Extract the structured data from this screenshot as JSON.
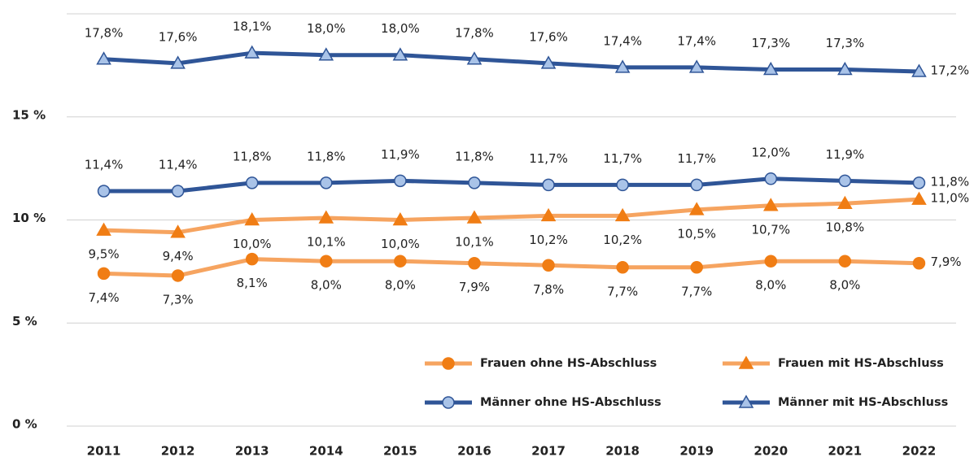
{
  "chart_data": {
    "type": "line",
    "categories": [
      "2011",
      "2012",
      "2013",
      "2014",
      "2015",
      "2016",
      "2017",
      "2018",
      "2019",
      "2020",
      "2021",
      "2022"
    ],
    "ylim": [
      0,
      20
    ],
    "yticks": [
      {
        "value": 0,
        "label": "0 %"
      },
      {
        "value": 5,
        "label": "5 %"
      },
      {
        "value": 10,
        "label": "10 %"
      },
      {
        "value": 15,
        "label": "15 %"
      }
    ],
    "grid": true,
    "series": [
      {
        "name": "Frauen ohne HS-Abschluss",
        "color": "#f6a460",
        "marker": "circle",
        "marker_color": "#f07d14",
        "values": [
          7.4,
          7.3,
          8.1,
          8.0,
          8.0,
          7.9,
          7.8,
          7.7,
          7.7,
          8.0,
          8.0,
          7.9
        ],
        "value_labels": [
          "7,4%",
          "7,3%",
          "8,1%",
          "8,0%",
          "8,0%",
          "7,9%",
          "7,8%",
          "7,7%",
          "7,7%",
          "8,0%",
          "8,0%",
          "7,9%"
        ]
      },
      {
        "name": "Frauen mit HS-Abschluss",
        "color": "#f6a460",
        "marker": "triangle",
        "marker_color": "#f07d14",
        "values": [
          9.5,
          9.4,
          10.0,
          10.1,
          10.0,
          10.1,
          10.2,
          10.2,
          10.5,
          10.7,
          10.8,
          11.0
        ],
        "value_labels": [
          "9,5%",
          "9,4%",
          "10,0%",
          "10,1%",
          "10,0%",
          "10,1%",
          "10,2%",
          "10,2%",
          "10,5%",
          "10,7%",
          "10,8%",
          "11,0%"
        ]
      },
      {
        "name": "Männer ohne HS-Abschluss",
        "color": "#2f5597",
        "marker": "circle",
        "marker_color": "#a9c3e8",
        "values": [
          11.4,
          11.4,
          11.8,
          11.8,
          11.9,
          11.8,
          11.7,
          11.7,
          11.7,
          12.0,
          11.9,
          11.8
        ],
        "value_labels": [
          "11,4%",
          "11,4%",
          "11,8%",
          "11,8%",
          "11,9%",
          "11,8%",
          "11,7%",
          "11,7%",
          "11,7%",
          "12,0%",
          "11,9%",
          "11,8%"
        ]
      },
      {
        "name": "Männer mit HS-Abschluss",
        "color": "#2f5597",
        "marker": "triangle",
        "marker_color": "#a9c3e8",
        "values": [
          17.8,
          17.6,
          18.1,
          18.0,
          18.0,
          17.8,
          17.6,
          17.4,
          17.4,
          17.3,
          17.3,
          17.2
        ],
        "value_labels": [
          "17,8%",
          "17,6%",
          "18,1%",
          "18,0%",
          "18,0%",
          "17,8%",
          "17,6%",
          "17,4%",
          "17,4%",
          "17,3%",
          "17,3%",
          "17,2%"
        ]
      }
    ]
  }
}
